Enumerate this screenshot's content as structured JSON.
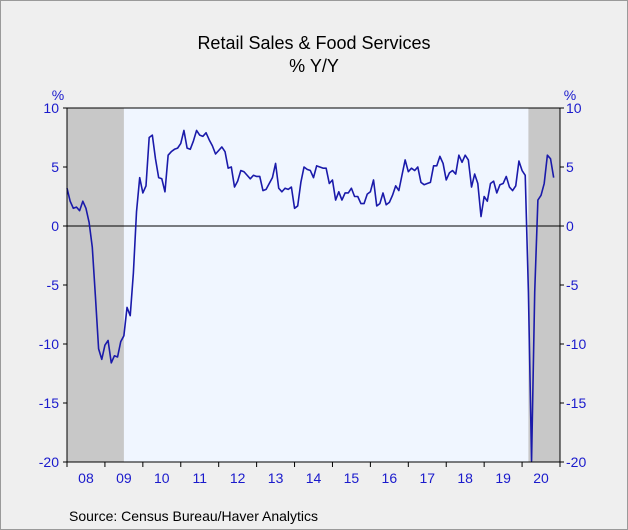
{
  "chart_data": {
    "type": "line",
    "title": "Retail Sales & Food Services",
    "subtitle": "% Y/Y",
    "ylabel_left": "%",
    "ylabel_right": "%",
    "ylim": [
      -20,
      10
    ],
    "yticks": [
      10,
      5,
      0,
      -5,
      -10,
      -15,
      -20
    ],
    "xlim": [
      2008.0,
      2021.0
    ],
    "xtick_labels": [
      "08",
      "09",
      "10",
      "11",
      "12",
      "13",
      "14",
      "15",
      "16",
      "17",
      "18",
      "19",
      "20"
    ],
    "recession_shading": [
      [
        2008.0,
        2009.5
      ],
      [
        2020.167,
        2021.0
      ]
    ],
    "colors": {
      "line": "#1a1aaa",
      "axis_text": "#1a1acc",
      "recession": "#c8c8c8",
      "plot_bg": "#f0f6ff"
    },
    "zero_line": true,
    "series": [
      {
        "x": [
          2008.0,
          2008.083,
          2008.167,
          2008.25,
          2008.333,
          2008.417,
          2008.5,
          2008.583,
          2008.667,
          2008.75,
          2008.833,
          2008.917,
          2009.0,
          2009.083,
          2009.167,
          2009.25,
          2009.333,
          2009.417,
          2009.5,
          2009.583,
          2009.667,
          2009.75,
          2009.833,
          2009.917,
          2010.0,
          2010.083,
          2010.167,
          2010.25,
          2010.333,
          2010.417,
          2010.5,
          2010.583,
          2010.667,
          2010.75,
          2010.833,
          2010.917,
          2011.0,
          2011.083,
          2011.167,
          2011.25,
          2011.333,
          2011.417,
          2011.5,
          2011.583,
          2011.667,
          2011.75,
          2011.833,
          2011.917,
          2012.0,
          2012.083,
          2012.167,
          2012.25,
          2012.333,
          2012.417,
          2012.5,
          2012.583,
          2012.667,
          2012.75,
          2012.833,
          2012.917,
          2013.0,
          2013.083,
          2013.167,
          2013.25,
          2013.333,
          2013.417,
          2013.5,
          2013.583,
          2013.667,
          2013.75,
          2013.833,
          2013.917,
          2014.0,
          2014.083,
          2014.167,
          2014.25,
          2014.333,
          2014.417,
          2014.5,
          2014.583,
          2014.667,
          2014.75,
          2014.833,
          2014.917,
          2015.0,
          2015.083,
          2015.167,
          2015.25,
          2015.333,
          2015.417,
          2015.5,
          2015.583,
          2015.667,
          2015.75,
          2015.833,
          2015.917,
          2016.0,
          2016.083,
          2016.167,
          2016.25,
          2016.333,
          2016.417,
          2016.5,
          2016.583,
          2016.667,
          2016.75,
          2016.833,
          2016.917,
          2017.0,
          2017.083,
          2017.167,
          2017.25,
          2017.333,
          2017.417,
          2017.5,
          2017.583,
          2017.667,
          2017.75,
          2017.833,
          2017.917,
          2018.0,
          2018.083,
          2018.167,
          2018.25,
          2018.333,
          2018.417,
          2018.5,
          2018.583,
          2018.667,
          2018.75,
          2018.833,
          2018.917,
          2019.0,
          2019.083,
          2019.167,
          2019.25,
          2019.333,
          2019.417,
          2019.5,
          2019.583,
          2019.667,
          2019.75,
          2019.833,
          2019.917,
          2020.0,
          2020.083,
          2020.167,
          2020.25,
          2020.333,
          2020.417,
          2020.5,
          2020.583,
          2020.667,
          2020.75,
          2020.833
        ],
        "values": [
          3.2,
          2.1,
          1.5,
          1.6,
          1.3,
          2.1,
          1.5,
          0.3,
          -1.8,
          -6.0,
          -10.4,
          -11.3,
          -10.1,
          -9.7,
          -11.6,
          -11.0,
          -11.1,
          -9.8,
          -9.3,
          -6.9,
          -7.6,
          -4.0,
          1.2,
          4.1,
          2.8,
          3.4,
          7.5,
          7.7,
          5.7,
          4.1,
          4.0,
          2.9,
          6.0,
          6.3,
          6.5,
          6.6,
          7.0,
          8.1,
          6.6,
          6.5,
          7.2,
          8.1,
          7.7,
          7.6,
          7.9,
          7.3,
          6.8,
          6.1,
          6.4,
          6.7,
          6.3,
          4.9,
          5.0,
          3.3,
          3.8,
          4.7,
          4.6,
          4.3,
          4.0,
          4.3,
          4.2,
          4.2,
          3.0,
          3.1,
          3.6,
          4.1,
          5.3,
          3.2,
          2.9,
          3.2,
          3.1,
          3.3,
          1.5,
          1.7,
          3.7,
          5.0,
          4.8,
          4.7,
          4.1,
          5.1,
          5.0,
          4.9,
          4.9,
          3.6,
          3.9,
          2.2,
          2.9,
          2.2,
          2.8,
          2.8,
          3.2,
          2.5,
          2.5,
          1.9,
          1.9,
          2.7,
          2.9,
          3.9,
          1.7,
          1.9,
          2.8,
          1.8,
          2.0,
          2.6,
          3.4,
          3.0,
          4.3,
          5.6,
          4.6,
          4.9,
          4.7,
          5.0,
          3.7,
          3.5,
          3.6,
          3.7,
          5.1,
          5.1,
          5.9,
          5.3,
          3.9,
          4.5,
          4.7,
          4.4,
          6.0,
          5.4,
          6.0,
          5.6,
          3.3,
          4.4,
          3.6,
          0.8,
          2.5,
          2.1,
          3.6,
          3.8,
          2.8,
          3.5,
          3.6,
          4.2,
          3.3,
          3.0,
          3.4,
          5.5,
          4.7,
          4.3,
          -5.6,
          -19.9,
          -5.6,
          2.2,
          2.6,
          3.6,
          6.0,
          5.7,
          4.1
        ]
      }
    ]
  },
  "source_text": "Source:  Census Bureau/Haver Analytics"
}
